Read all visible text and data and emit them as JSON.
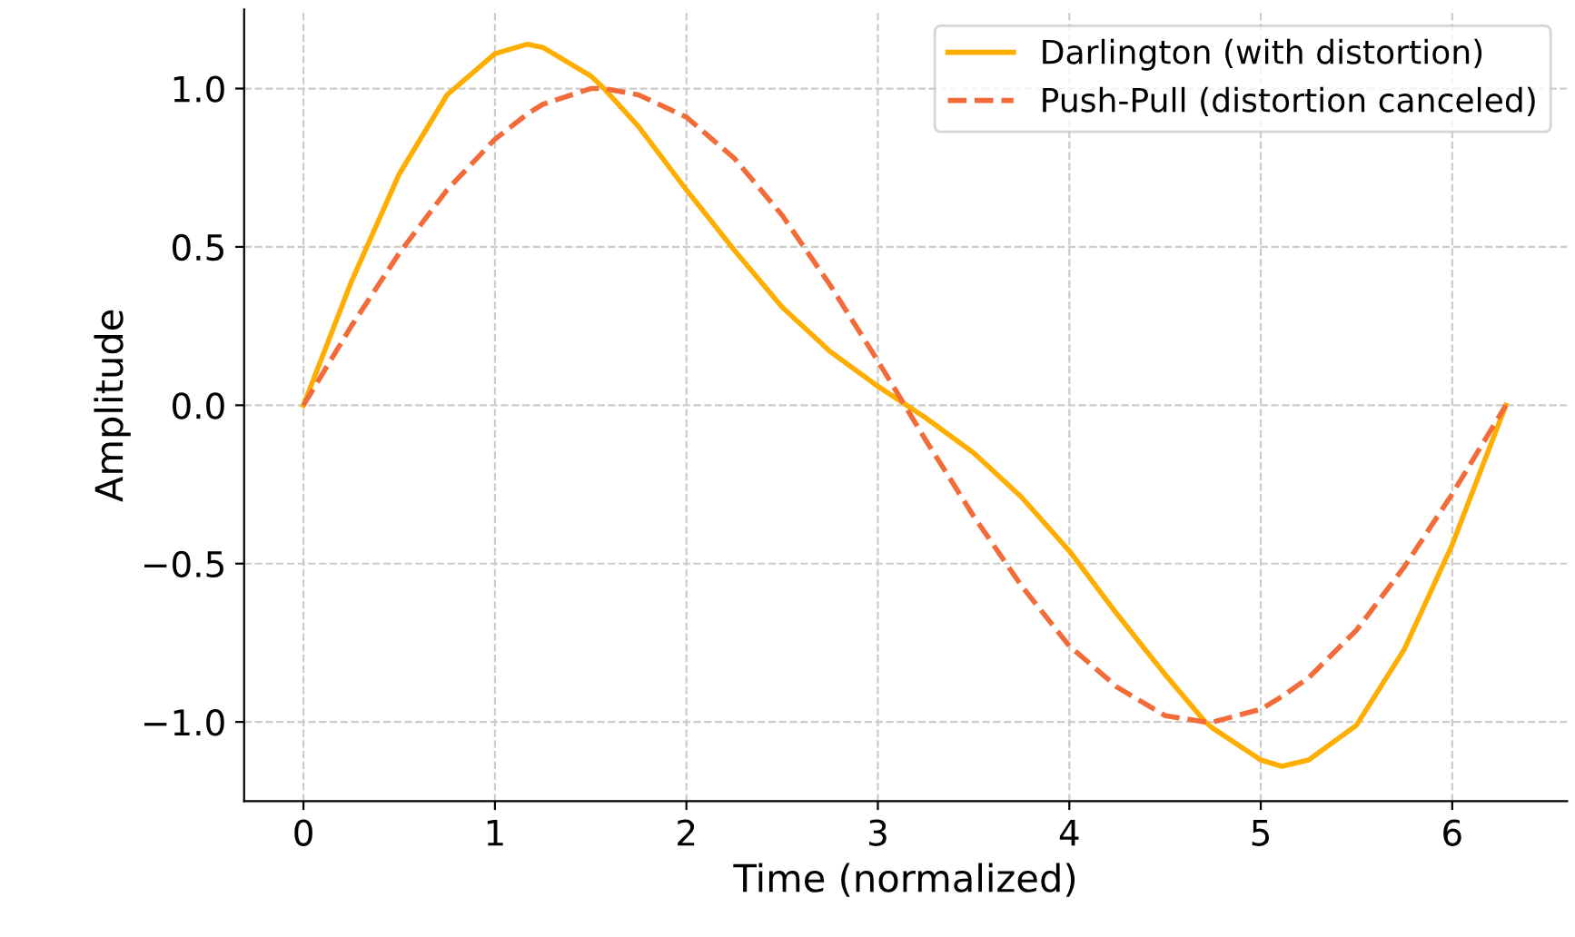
{
  "chart_data": {
    "type": "line",
    "xlabel": "Time (normalized)",
    "ylabel": "Amplitude",
    "x": [
      0,
      0.25,
      0.5,
      0.75,
      1,
      1.17,
      1.25,
      1.5,
      1.57,
      1.75,
      2,
      2.25,
      2.5,
      2.75,
      3,
      3.25,
      3.5,
      3.75,
      4,
      4.25,
      4.5,
      4.71,
      4.75,
      5,
      5.11,
      5.25,
      5.5,
      5.75,
      6,
      6.28
    ],
    "series": [
      {
        "name": "Darlington (with distortion)",
        "color": "#ffae00",
        "line_style": "solid",
        "values": [
          0,
          0.39,
          0.73,
          0.98,
          1.11,
          1.14,
          1.13,
          1.04,
          1.0,
          0.88,
          0.68,
          0.49,
          0.31,
          0.17,
          0.06,
          -0.04,
          -0.15,
          -0.29,
          -0.46,
          -0.66,
          -0.85,
          -1.0,
          -1.02,
          -1.12,
          -1.14,
          -1.12,
          -1.01,
          -0.77,
          -0.44,
          0
        ]
      },
      {
        "name": "Push-Pull (distortion canceled)",
        "color": "#f26b38",
        "line_style": "dashed",
        "values": [
          0,
          0.25,
          0.48,
          0.68,
          0.84,
          0.92,
          0.95,
          1.0,
          1.0,
          0.98,
          0.91,
          0.78,
          0.6,
          0.38,
          0.14,
          -0.11,
          -0.35,
          -0.57,
          -0.76,
          -0.89,
          -0.98,
          -1.0,
          -1.0,
          -0.96,
          -0.92,
          -0.86,
          -0.71,
          -0.51,
          -0.28,
          0
        ]
      }
    ],
    "xlim": [
      -0.31,
      6.6
    ],
    "xticks": [
      0,
      1,
      2,
      3,
      4,
      5,
      6
    ],
    "ylim": [
      -1.25,
      1.25
    ],
    "yticks": [
      {
        "value": -1.0,
        "label": "−1.0"
      },
      {
        "value": -0.5,
        "label": "−0.5"
      },
      {
        "value": 0.0,
        "label": "0.0"
      },
      {
        "value": 0.5,
        "label": "0.5"
      },
      {
        "value": 1.0,
        "label": "1.0"
      }
    ],
    "grid": true,
    "legend": "top right"
  }
}
